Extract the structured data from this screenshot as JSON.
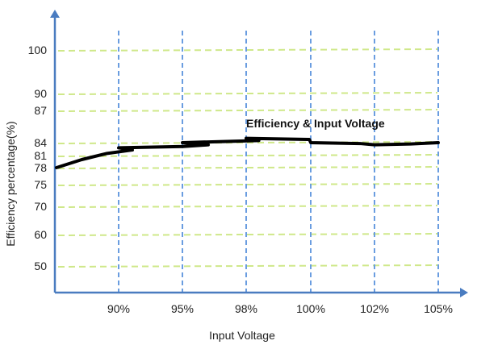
{
  "chart_data": {
    "type": "line",
    "title": "Efficiency & Input Voltage",
    "xlabel": "Input Voltage",
    "ylabel": "Efficiency percentage(%)",
    "x_tick_labels": [
      "90%",
      "95%",
      "98%",
      "100%",
      "102%",
      "105%"
    ],
    "y_tick_labels": [
      "100",
      "90",
      "87",
      "84",
      "81",
      "78",
      "75",
      "70",
      "60",
      "50"
    ],
    "grid": true,
    "series": [
      {
        "points": [
          {
            "x": "",
            "y": 78
          },
          {
            "x": "",
            "y": 80
          },
          {
            "x": "",
            "y": 81.5
          },
          {
            "x": "",
            "y": 82.3
          },
          {
            "x": "90%",
            "y": 82.8
          },
          {
            "x": "",
            "y": 83.1
          },
          {
            "x": "",
            "y": 83.5
          },
          {
            "x": "95%",
            "y": 84
          },
          {
            "x": "",
            "y": 84.2
          },
          {
            "x": "98%",
            "y": 84.4
          },
          {
            "x": "",
            "y": 84.3
          },
          {
            "x": "100%",
            "y": 84
          },
          {
            "x": "",
            "y": 83.8
          },
          {
            "x": "102%",
            "y": 83.5
          },
          {
            "x": "",
            "y": 83.7
          },
          {
            "x": "105%",
            "y": 84
          }
        ]
      }
    ]
  },
  "colors": {
    "axis": "#4a7cc0",
    "vertical_grid": "#6a9de0",
    "horizontal_grid": "#cfe88a",
    "series_line": "#000000",
    "text": "#222222"
  }
}
